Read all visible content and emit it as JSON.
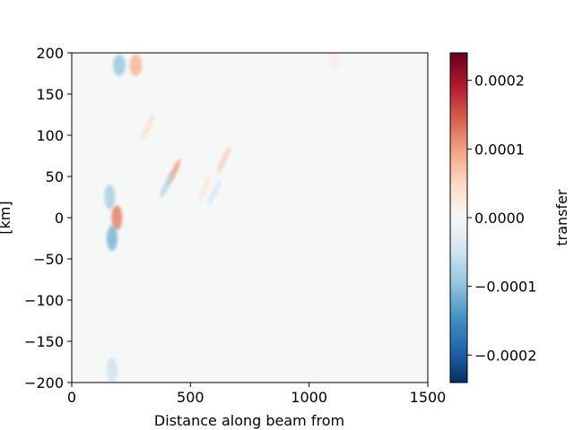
{
  "chart_data": {
    "type": "heatmap",
    "title": "",
    "xlabel": "Distance along beam from",
    "ylabel": "[km]",
    "colorbar_label": "transfer",
    "colormap": "RdBu_r",
    "x_range": [
      0,
      1500
    ],
    "y_range": [
      -200,
      200
    ],
    "x_ticks": [
      0,
      500,
      1000,
      1500
    ],
    "x_tick_labels": [
      "0",
      "500",
      "1000",
      "1500"
    ],
    "y_ticks": [
      200,
      150,
      100,
      50,
      0,
      -50,
      -100,
      -150,
      -200
    ],
    "y_tick_labels": [
      "200",
      "150",
      "100",
      "50",
      "0",
      "−50",
      "−100",
      "−150",
      "−200"
    ],
    "color_range": [
      -0.00024,
      0.00024
    ],
    "colorbar_ticks": [
      0.0002,
      0.0001,
      0.0,
      -0.0001,
      -0.0002
    ],
    "colorbar_tick_labels": [
      "0.0002",
      "0.0001",
      "0.0000",
      "−0.0001",
      "−0.0002"
    ],
    "grid": false,
    "features": [
      {
        "kind": "dipole",
        "x": 270,
        "y": 185,
        "value": 8e-05
      },
      {
        "kind": "dipole",
        "x": 200,
        "y": 185,
        "value": -9e-05
      },
      {
        "kind": "eddy",
        "x": 190,
        "y": 0,
        "value": 0.00012
      },
      {
        "kind": "eddy",
        "x": 170,
        "y": -25,
        "value": -0.00011
      },
      {
        "kind": "eddy",
        "x": 160,
        "y": 25,
        "value": -8e-05
      },
      {
        "kind": "filament",
        "x": 430,
        "y": 55,
        "value": 0.0001
      },
      {
        "kind": "filament",
        "x": 400,
        "y": 40,
        "value": -7e-05
      },
      {
        "kind": "filament",
        "x": 320,
        "y": 110,
        "value": 4e-05
      },
      {
        "kind": "filament",
        "x": 640,
        "y": 70,
        "value": 6e-05
      },
      {
        "kind": "filament",
        "x": 600,
        "y": 30,
        "value": -4e-05
      },
      {
        "kind": "filament",
        "x": 560,
        "y": 35,
        "value": 3e-05
      },
      {
        "kind": "eddy",
        "x": 170,
        "y": -185,
        "value": -5e-05
      },
      {
        "kind": "eddy",
        "x": 1110,
        "y": 195,
        "value": 2e-05
      }
    ]
  }
}
